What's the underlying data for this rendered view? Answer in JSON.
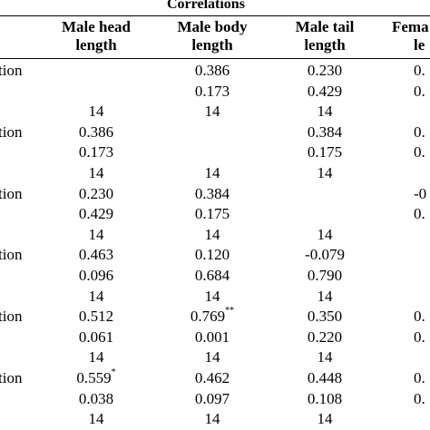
{
  "title": "Correlations",
  "columns": [
    {
      "line1": "Male head",
      "line2": "length"
    },
    {
      "line1": "Male body",
      "line2": "length"
    },
    {
      "line1": "Male tail",
      "line2": "length"
    },
    {
      "line1": "Fema",
      "line2": "le"
    }
  ],
  "row_label_fragment": "tion",
  "blocks": [
    {
      "label": "tion",
      "rows": [
        [
          {
            "v": "",
            "s": ""
          },
          {
            "v": "0.386",
            "s": ""
          },
          {
            "v": "0.230",
            "s": ""
          },
          {
            "v": "0.",
            "s": ""
          }
        ],
        [
          {
            "v": "",
            "s": ""
          },
          {
            "v": "0.173",
            "s": ""
          },
          {
            "v": "0.429",
            "s": ""
          },
          {
            "v": "0.",
            "s": ""
          }
        ],
        [
          {
            "v": "14",
            "s": ""
          },
          {
            "v": "14",
            "s": ""
          },
          {
            "v": "14",
            "s": ""
          },
          {
            "v": "",
            "s": ""
          }
        ]
      ]
    },
    {
      "label": "tion",
      "rows": [
        [
          {
            "v": "0.386",
            "s": ""
          },
          {
            "v": "",
            "s": ""
          },
          {
            "v": "0.384",
            "s": ""
          },
          {
            "v": "0.",
            "s": ""
          }
        ],
        [
          {
            "v": "0.173",
            "s": ""
          },
          {
            "v": "",
            "s": ""
          },
          {
            "v": "0.175",
            "s": ""
          },
          {
            "v": "0.",
            "s": ""
          }
        ],
        [
          {
            "v": "14",
            "s": ""
          },
          {
            "v": "14",
            "s": ""
          },
          {
            "v": "14",
            "s": ""
          },
          {
            "v": "",
            "s": ""
          }
        ]
      ]
    },
    {
      "label": "tion",
      "rows": [
        [
          {
            "v": "0.230",
            "s": ""
          },
          {
            "v": "0.384",
            "s": ""
          },
          {
            "v": "",
            "s": ""
          },
          {
            "v": "-0",
            "s": ""
          }
        ],
        [
          {
            "v": "0.429",
            "s": ""
          },
          {
            "v": "0.175",
            "s": ""
          },
          {
            "v": "",
            "s": ""
          },
          {
            "v": "0.",
            "s": ""
          }
        ],
        [
          {
            "v": "14",
            "s": ""
          },
          {
            "v": "14",
            "s": ""
          },
          {
            "v": "14",
            "s": ""
          },
          {
            "v": "",
            "s": ""
          }
        ]
      ]
    },
    {
      "label": "tion",
      "rows": [
        [
          {
            "v": "0.463",
            "s": ""
          },
          {
            "v": "0.120",
            "s": ""
          },
          {
            "v": "-0.079",
            "s": ""
          },
          {
            "v": "",
            "s": ""
          }
        ],
        [
          {
            "v": "0.096",
            "s": ""
          },
          {
            "v": "0.684",
            "s": ""
          },
          {
            "v": "0.790",
            "s": ""
          },
          {
            "v": "",
            "s": ""
          }
        ],
        [
          {
            "v": "14",
            "s": ""
          },
          {
            "v": "14",
            "s": ""
          },
          {
            "v": "14",
            "s": ""
          },
          {
            "v": "",
            "s": ""
          }
        ]
      ]
    },
    {
      "label": "tion",
      "rows": [
        [
          {
            "v": "0.512",
            "s": ""
          },
          {
            "v": "0.769",
            "s": "**"
          },
          {
            "v": "0.350",
            "s": ""
          },
          {
            "v": "0.",
            "s": ""
          }
        ],
        [
          {
            "v": "0.061",
            "s": ""
          },
          {
            "v": "0.001",
            "s": ""
          },
          {
            "v": "0.220",
            "s": ""
          },
          {
            "v": "0.",
            "s": ""
          }
        ],
        [
          {
            "v": "14",
            "s": ""
          },
          {
            "v": "14",
            "s": ""
          },
          {
            "v": "14",
            "s": ""
          },
          {
            "v": "",
            "s": ""
          }
        ]
      ]
    },
    {
      "label": "tion",
      "rows": [
        [
          {
            "v": "0.559",
            "s": "*"
          },
          {
            "v": "0.462",
            "s": ""
          },
          {
            "v": "0.448",
            "s": ""
          },
          {
            "v": "0.",
            "s": ""
          }
        ],
        [
          {
            "v": "0.038",
            "s": ""
          },
          {
            "v": "0.097",
            "s": ""
          },
          {
            "v": "0.108",
            "s": ""
          },
          {
            "v": "0.",
            "s": ""
          }
        ],
        [
          {
            "v": "14",
            "s": ""
          },
          {
            "v": "14",
            "s": ""
          },
          {
            "v": "14",
            "s": ""
          },
          {
            "v": "",
            "s": ""
          }
        ]
      ]
    }
  ]
}
